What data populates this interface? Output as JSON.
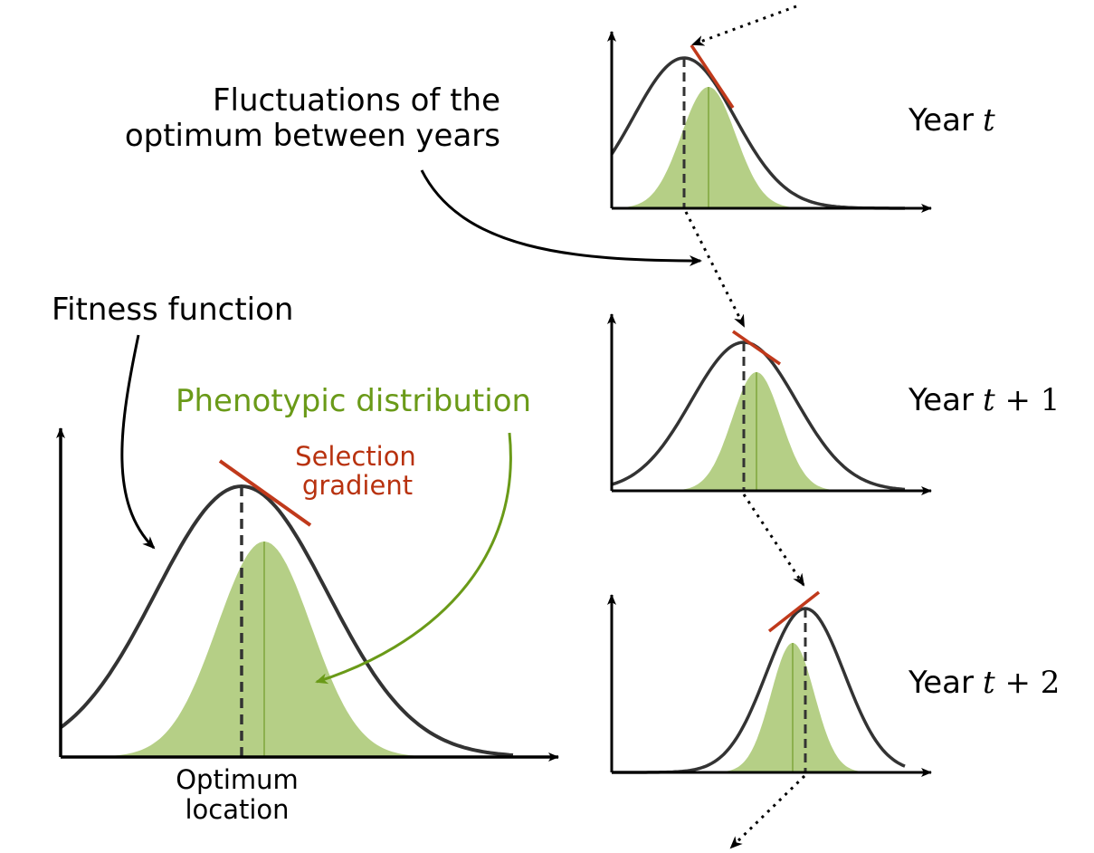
{
  "labels": {
    "fluctuations_line1": "Fluctuations of the",
    "fluctuations_line2": "optimum between years",
    "fitness_function": "Fitness function",
    "phenotypic_distribution": "Phenotypic distribution",
    "selection_line1": "Selection",
    "selection_line2": "gradient",
    "optimum_line1": "Optimum",
    "optimum_line2": "location"
  },
  "years": [
    {
      "word": "Year",
      "var": "t",
      "suffix": ""
    },
    {
      "word": "Year",
      "var": "t",
      "suffix": " + 1"
    },
    {
      "word": "Year",
      "var": "t",
      "suffix": " + 2"
    }
  ],
  "colors": {
    "fitness_curve": "#333333",
    "phenotype_fill": "#b5cf86",
    "phenotype_line": "#7ea63c",
    "selection_gradient": "#c0391b",
    "phenotype_label": "#6a9a18",
    "selection_label": "#b8320f",
    "axis": "#000000"
  }
}
